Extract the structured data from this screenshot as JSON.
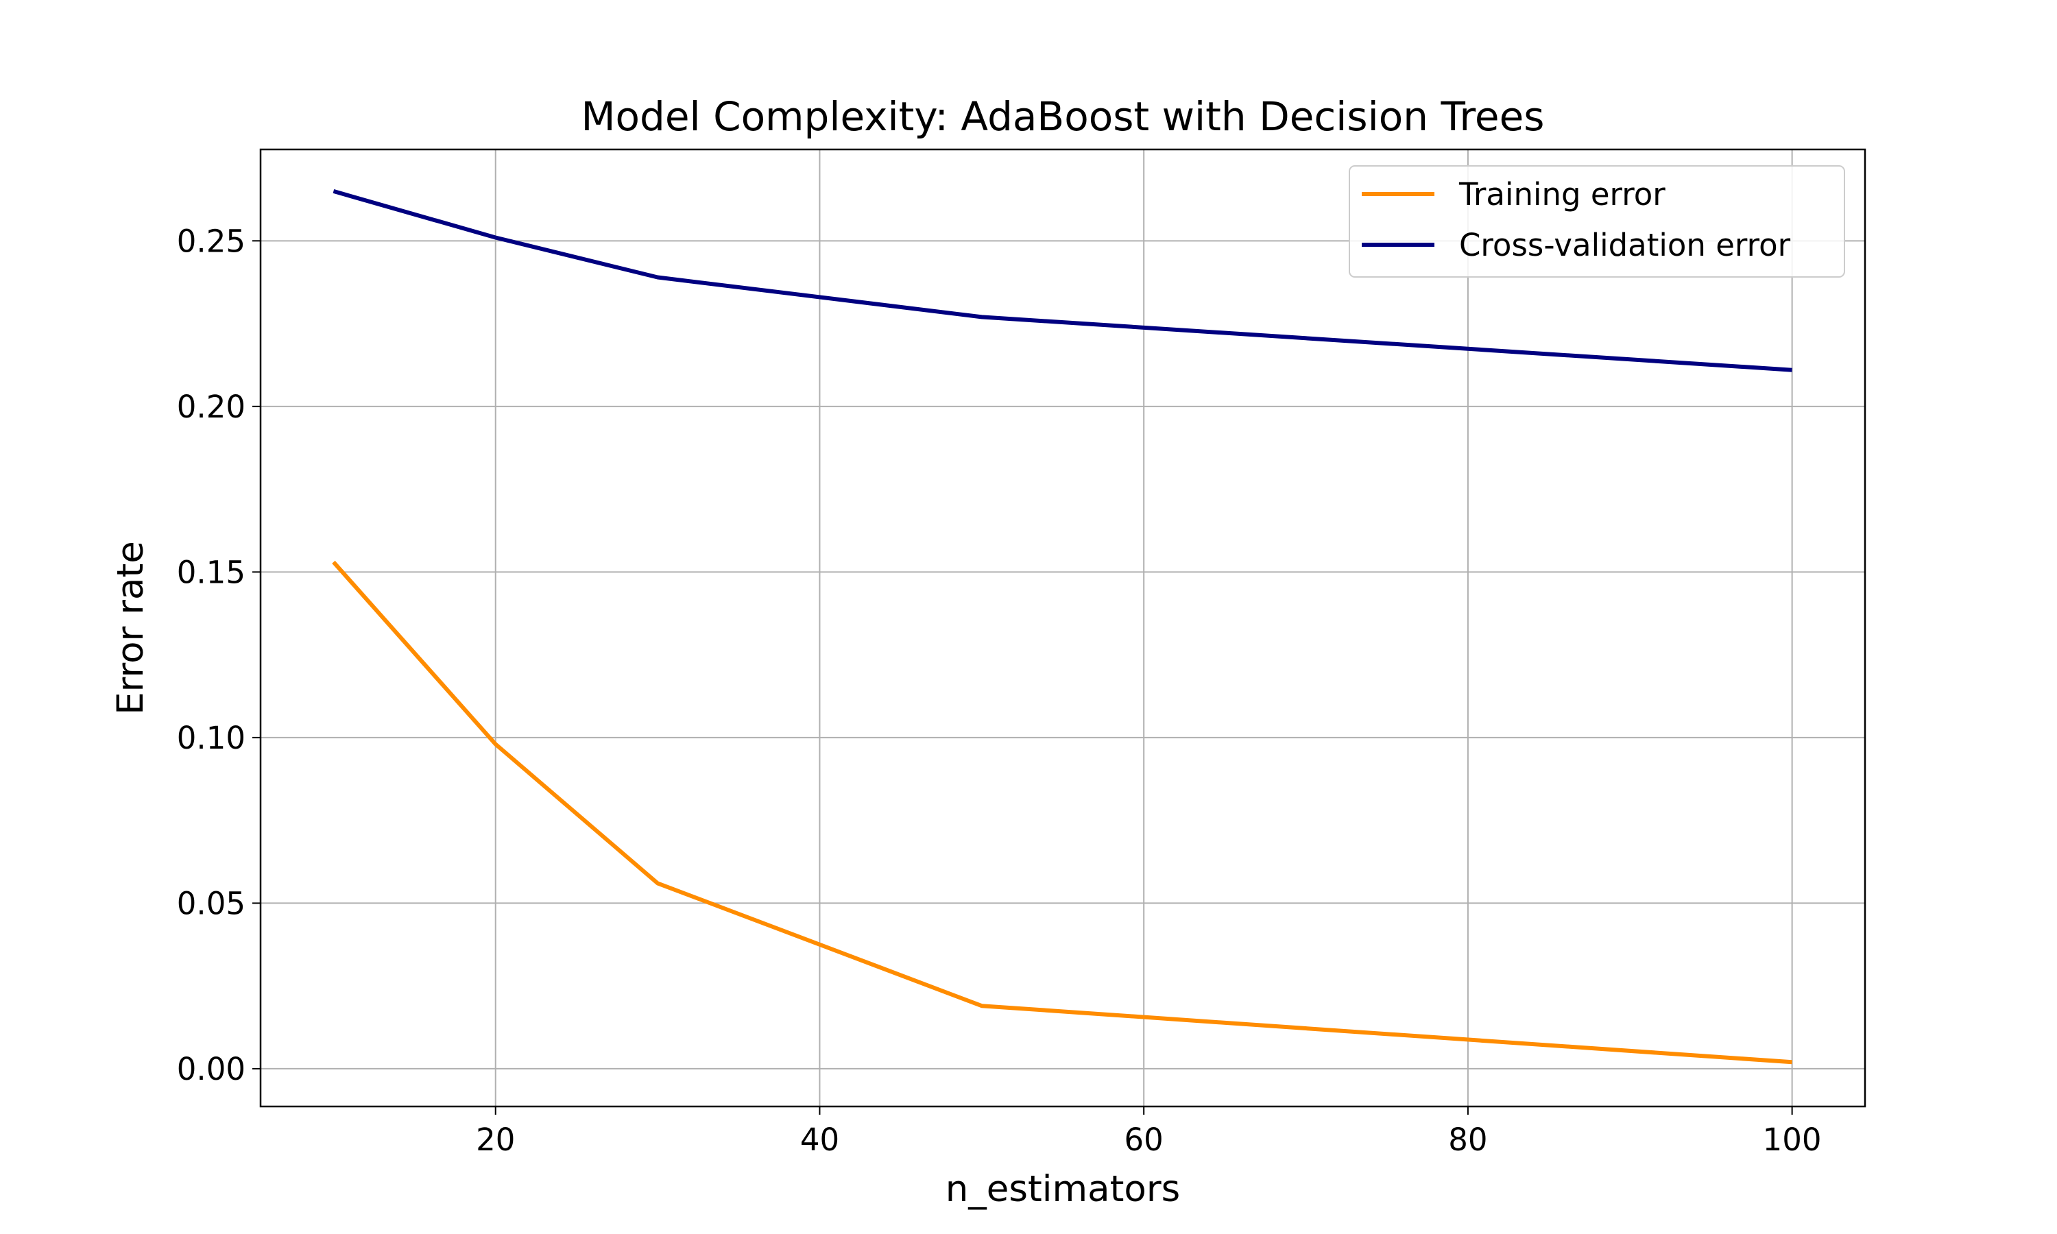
{
  "chart_data": {
    "type": "line",
    "title": "Model Complexity: AdaBoost with Decision Trees",
    "xlabel": "n_estimators",
    "ylabel": "Error rate",
    "xlim": [
      5.5,
      104.5
    ],
    "ylim": [
      -0.0114,
      0.2776
    ],
    "xticks": [
      20,
      40,
      60,
      80,
      100
    ],
    "xtick_labels": [
      "20",
      "40",
      "60",
      "80",
      "100"
    ],
    "yticks": [
      0.0,
      0.05,
      0.1,
      0.15,
      0.2,
      0.25
    ],
    "ytick_labels": [
      "0.00",
      "0.05",
      "0.10",
      "0.15",
      "0.20",
      "0.25"
    ],
    "grid": true,
    "legend_position": "top-right",
    "series": [
      {
        "name": "Training error",
        "color": "#ff8c00",
        "x": [
          10,
          20,
          30,
          50,
          100
        ],
        "y": [
          0.153,
          0.098,
          0.056,
          0.019,
          0.002
        ]
      },
      {
        "name": "Cross-validation error",
        "color": "#000080",
        "x": [
          10,
          20,
          30,
          50,
          100
        ],
        "y": [
          0.265,
          0.251,
          0.239,
          0.227,
          0.211
        ]
      }
    ]
  }
}
